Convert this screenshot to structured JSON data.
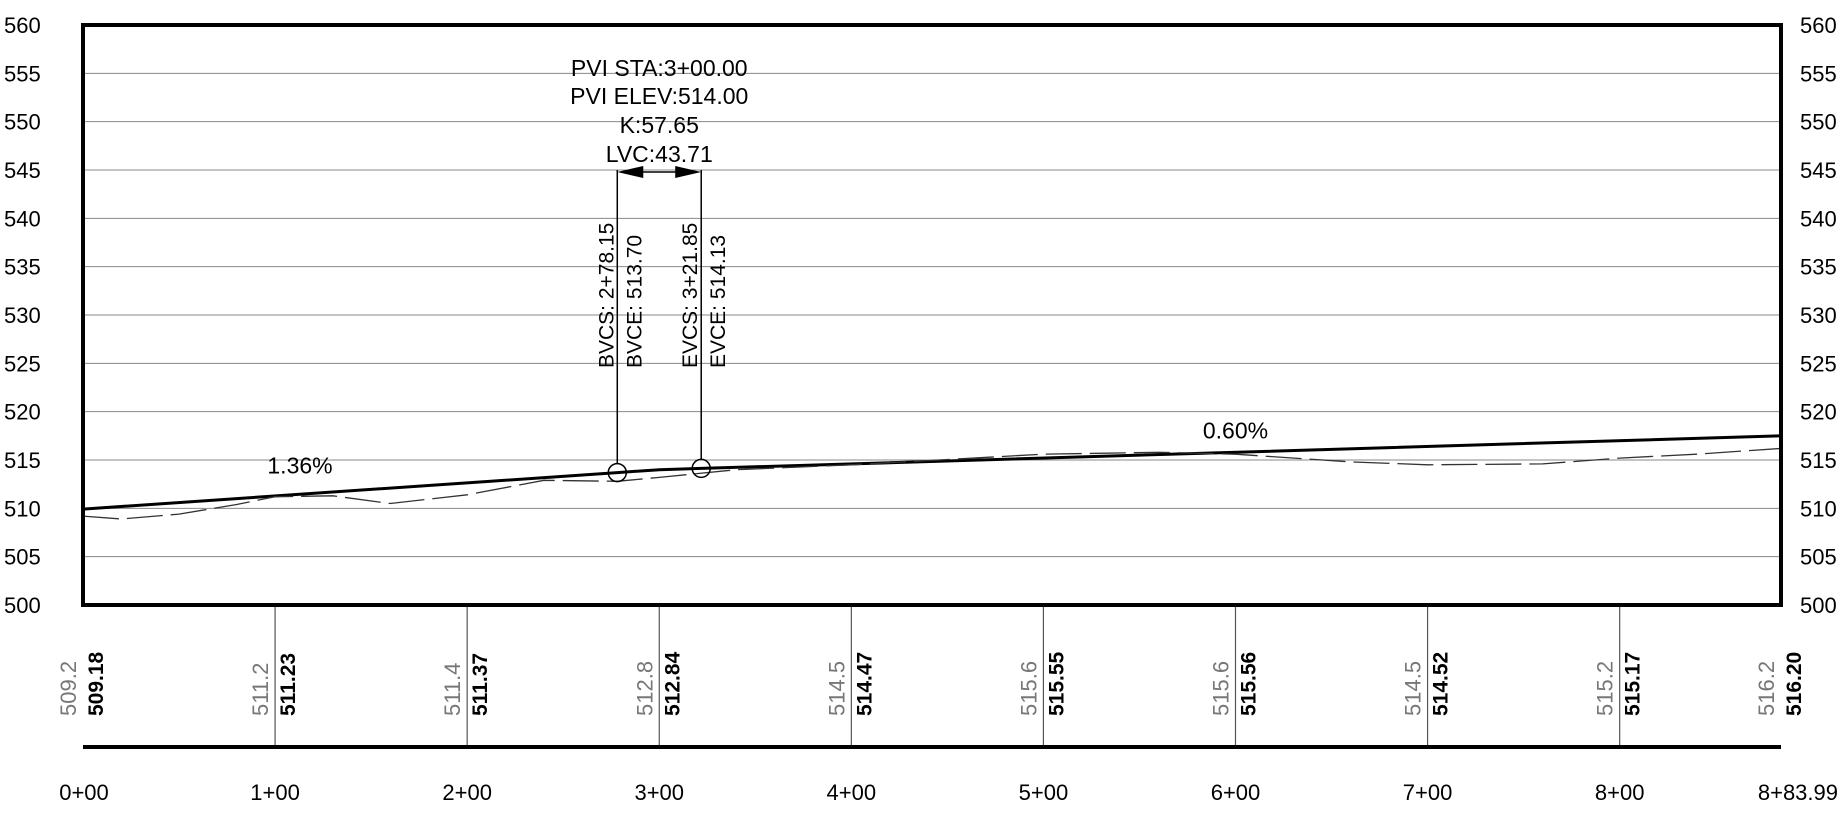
{
  "chart_data": {
    "type": "line",
    "ylim": [
      500,
      560
    ],
    "y_ticks": [
      "500",
      "505",
      "510",
      "515",
      "520",
      "525",
      "530",
      "535",
      "540",
      "545",
      "550",
      "555",
      "560"
    ],
    "x_ticks": [
      "0+00",
      "1+00",
      "2+00",
      "3+00",
      "4+00",
      "5+00",
      "6+00",
      "7+00",
      "8+00",
      "8+83.99"
    ],
    "grid": true,
    "series": [
      {
        "style": "solid",
        "x": [
          0,
          278.15,
          300,
          321.85,
          883.99
        ],
        "y": [
          509.92,
          513.7,
          514.0,
          514.13,
          517.5
        ]
      },
      {
        "style": "dashed",
        "x": [
          0,
          20,
          50,
          80,
          100,
          130,
          160,
          200,
          240,
          278,
          300,
          340,
          400,
          500,
          560,
          600,
          660,
          700,
          760,
          800,
          840,
          883.99
        ],
        "y": [
          509.2,
          508.9,
          509.4,
          510.4,
          511.2,
          511.3,
          510.5,
          511.4,
          512.9,
          512.8,
          513.2,
          514.0,
          514.5,
          515.6,
          515.8,
          515.6,
          514.8,
          514.5,
          514.6,
          515.2,
          515.6,
          516.2
        ]
      }
    ],
    "annotations": {
      "pvi_lines": [
        "PVI STA:3+00.00",
        "PVI ELEV:514.00",
        "K:57.65",
        "LVC:43.71"
      ],
      "bvcs": "BVCS: 2+78.15",
      "bvce": "BVCE: 513.70",
      "evcs": "EVCS: 3+21.85",
      "evce": "EVCE: 514.13",
      "grade_in": "1.36%",
      "grade_out": "0.60%"
    },
    "elevation_table": [
      {
        "existing": "509.2",
        "design": "509.18"
      },
      {
        "existing": "511.2",
        "design": "511.23"
      },
      {
        "existing": "511.4",
        "design": "511.37"
      },
      {
        "existing": "512.8",
        "design": "512.84"
      },
      {
        "existing": "514.5",
        "design": "514.47"
      },
      {
        "existing": "515.6",
        "design": "515.55"
      },
      {
        "existing": "515.6",
        "design": "515.56"
      },
      {
        "existing": "514.5",
        "design": "514.52"
      },
      {
        "existing": "515.2",
        "design": "515.17"
      },
      {
        "existing": "516.2",
        "design": "516.20"
      }
    ]
  }
}
